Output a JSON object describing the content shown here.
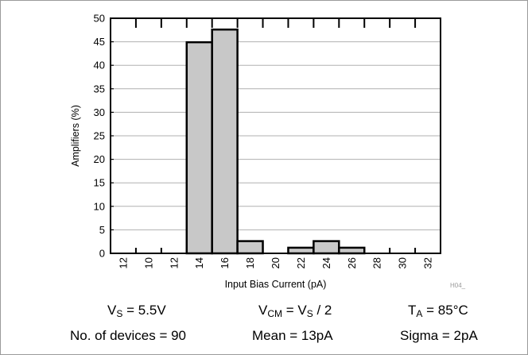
{
  "chart_data": {
    "type": "bar",
    "categories": [
      "12",
      "10",
      "12",
      "14",
      "16",
      "18",
      "20",
      "22",
      "24",
      "26",
      "28",
      "30",
      "32"
    ],
    "values": [
      0,
      0,
      0,
      44.9,
      47.6,
      2.6,
      0,
      1.2,
      2.6,
      1.2,
      0,
      0,
      0
    ],
    "xlabel": "Input Bias Current (pA)",
    "ylabel": "Amplifiers (%)",
    "ylim": [
      0,
      50
    ],
    "yticks": [
      0,
      5,
      10,
      15,
      20,
      25,
      30,
      35,
      40,
      45,
      50
    ],
    "grid": true,
    "bar_color": "#c8c8c8",
    "watermark": "H04_"
  },
  "conditions": {
    "vs_label": "V",
    "vs_sub": "S",
    "vs_value": " = 5.5V",
    "vcm_label": "V",
    "vcm_sub": "CM",
    "vcm_mid": " = V",
    "vcm_sub2": "S",
    "vcm_value": " / 2",
    "ta_label": "T",
    "ta_sub": "A",
    "ta_value": " = 85°C",
    "devices": "No. of devices = 90",
    "mean": "Mean = 13pA",
    "sigma": "Sigma = 2pA"
  }
}
